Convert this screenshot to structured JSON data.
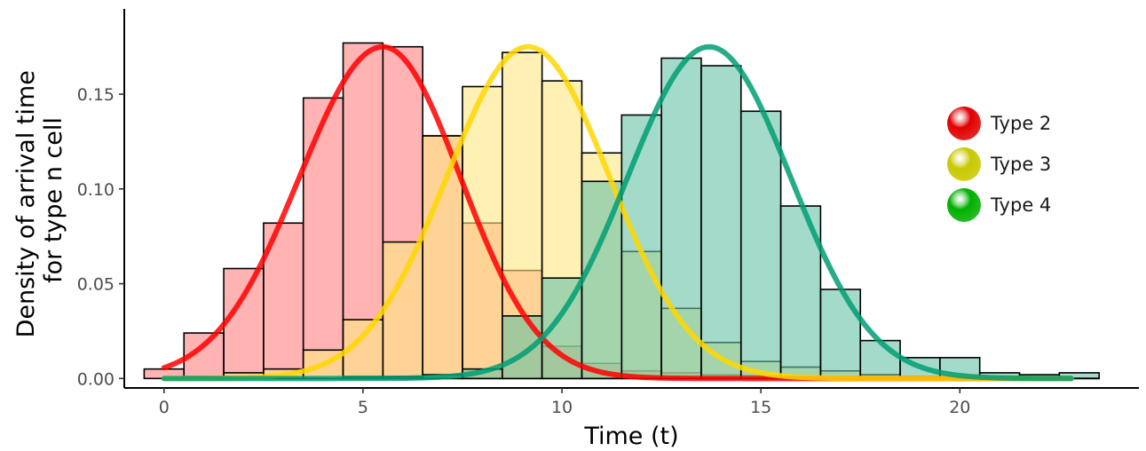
{
  "chart_data": {
    "type": "bar",
    "xlabel": "Time (t)",
    "ylabel": [
      "Density of arrival time",
      "for type n cell"
    ],
    "xlim": [
      -1.0,
      24.5
    ],
    "ylim": [
      -0.005,
      0.195
    ],
    "x_ticks": [
      0,
      5,
      10,
      15,
      20
    ],
    "y_ticks": [
      0.0,
      0.05,
      0.1,
      0.15
    ],
    "y_tick_labels": [
      "0.00",
      "0.05",
      "0.10",
      "0.15"
    ],
    "grid": false,
    "legend_position": "right",
    "bin_width": 1,
    "bin_starts": [
      -0.5,
      0.5,
      1.5,
      2.5,
      3.5,
      4.5,
      5.5,
      6.5,
      7.5,
      8.5,
      9.5,
      10.5,
      11.5,
      12.5,
      13.5,
      14.5,
      15.5,
      16.5,
      17.5,
      18.5,
      19.5,
      20.5,
      21.5,
      22.5
    ],
    "series": [
      {
        "name": "Type 2",
        "legend_color": "#e00000",
        "bar_color": "#ff8080",
        "curve_color": "#ff0000",
        "values": [
          0.005,
          0.024,
          0.058,
          0.082,
          0.148,
          0.177,
          0.175,
          0.128,
          0.082,
          0.057,
          0.017,
          0.008,
          0.004,
          0.003,
          0.002,
          0.0015,
          0.001,
          0.0008,
          0.0005,
          0.0004,
          0.0003,
          0.0002,
          0.0001,
          0.0001
        ],
        "curve": {
          "mean": 5.5,
          "peak": 0.175,
          "sigma_left": 2.1,
          "sigma_right": 1.95,
          "tail_rate": 0.38,
          "x_start": 0,
          "x_end": 22.8
        }
      },
      {
        "name": "Type 3",
        "legend_color": "#c8c800",
        "bar_color": "#ffe680",
        "curve_color": "#ffd700",
        "values": [
          0,
          0.001,
          0.003,
          0.005,
          0.015,
          0.031,
          0.072,
          0.128,
          0.154,
          0.172,
          0.157,
          0.119,
          0.067,
          0.037,
          0.019,
          0.009,
          0.006,
          0.004,
          0.002,
          0.001,
          0.0007,
          0.0005,
          0.0003,
          0.0002
        ],
        "curve": {
          "mean": 9.15,
          "peak": 0.175,
          "sigma_left": 2.05,
          "sigma_right": 2.05,
          "tail_rate": 0.36,
          "x_start": 0,
          "x_end": 22.8
        }
      },
      {
        "name": "Type 4",
        "legend_color": "#00b000",
        "bar_color": "#66c2a5",
        "curve_color": "#009e73",
        "values": [
          0,
          0,
          0,
          0,
          0,
          0.001,
          0.001,
          0.002,
          0.005,
          0.033,
          0.053,
          0.104,
          0.139,
          0.169,
          0.165,
          0.141,
          0.091,
          0.047,
          0.02,
          0.011,
          0.011,
          0.003,
          0.002,
          0.003
        ],
        "curve": {
          "mean": 13.7,
          "peak": 0.175,
          "sigma_left": 2.05,
          "sigma_right": 2.05,
          "tail_rate": 0.37,
          "x_start": 0,
          "x_end": 22.8
        }
      }
    ]
  }
}
